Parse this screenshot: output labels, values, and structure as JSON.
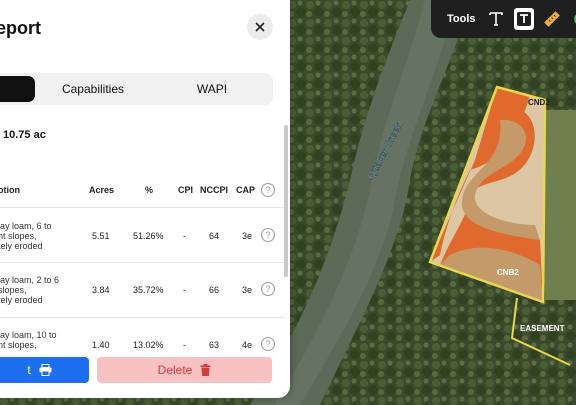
{
  "panel": {
    "title": "eport",
    "tabs": [
      {
        "label": ""
      },
      {
        "label": "Capabilities"
      },
      {
        "label": "WAPI"
      }
    ],
    "area": "10.75 ac",
    "columns": {
      "description": "otion",
      "acres": "Acres",
      "percent": "%",
      "cpi": "CPI",
      "nccpi": "NCCPI",
      "cap": "CAP",
      "help": "?"
    },
    "rows": [
      {
        "desc1": "lay loam, 6 to",
        "desc2": "nt slopes,",
        "desc3": "tely eroded",
        "acres": "5.51",
        "percent": "51.26%",
        "cpi": "-",
        "nccpi": "64",
        "cap": "3e"
      },
      {
        "desc1": "lay loam, 2 to 6",
        "desc2": "slopes,",
        "desc3": "tely eroded",
        "acres": "3.84",
        "percent": "35.72%",
        "cpi": "-",
        "nccpi": "66",
        "cap": "3e"
      },
      {
        "desc1": "lay loam, 10 to",
        "desc2": "nt slopes,",
        "desc3": "",
        "acres": "1.40",
        "percent": "13.02%",
        "cpi": "-",
        "nccpi": "63",
        "cap": "4e"
      }
    ],
    "export_label": "t",
    "delete_label": "Delete"
  },
  "toolbar": {
    "label": "Tools"
  },
  "map": {
    "creek_label": "Quaker Creek",
    "soil_labels": [
      "CND2",
      "CNB2"
    ],
    "easement_label": "EASEMENT"
  },
  "colors": {
    "accent_blue": "#1e6ef0",
    "delete_bg": "#f9c2c2",
    "delete_text": "#d43b3b",
    "boundary": "#e8d84a",
    "soil_orange": "#e0692e",
    "soil_tan": "#c49a6a",
    "soil_light": "#dcc6a3"
  }
}
